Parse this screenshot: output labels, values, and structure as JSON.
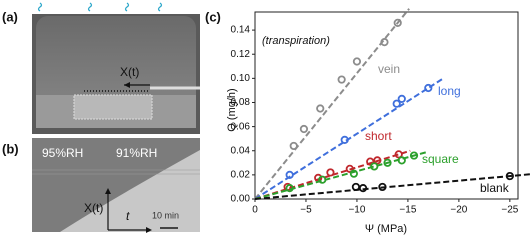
{
  "panels": {
    "a": {
      "label": "(a)",
      "arrow_label": "X(t)"
    },
    "b": {
      "label": "(b)",
      "left_text": "95%RH",
      "right_text": "91%RH",
      "y_label": "X(t)",
      "x_label": "t",
      "scale_label": "10 min"
    }
  },
  "chart_data": {
    "type": "scatter",
    "panel_label": "(c)",
    "annotation": "(transpiration)",
    "x_label": "Ψ (MPa)",
    "y_label": "Q (mg/h)",
    "xlim": [
      0,
      -25.8
    ],
    "ylim": [
      0,
      0.155
    ],
    "xticks": [
      0,
      {
        "value": -5,
        "label": "−5"
      },
      {
        "value": -10,
        "label": "−10"
      },
      {
        "value": -15,
        "label": "−15"
      },
      {
        "value": -20,
        "label": "−20"
      },
      {
        "value": -25,
        "label": "−25"
      }
    ],
    "yticks": [
      {
        "value": 0,
        "label": "0.00"
      },
      {
        "value": 0.02,
        "label": "0.02"
      },
      {
        "value": 0.04,
        "label": "0.04"
      },
      {
        "value": 0.06,
        "label": "0.06"
      },
      {
        "value": 0.08,
        "label": "0.08"
      },
      {
        "value": 0.1,
        "label": "0.10"
      },
      {
        "value": 0.12,
        "label": "0.12"
      },
      {
        "value": 0.14,
        "label": "0.14"
      }
    ],
    "series": [
      {
        "name": "vein",
        "color": "#8c8c8c",
        "x": [
          -3.8,
          -4.8,
          -6.4,
          -8.5,
          -10,
          -12.7,
          -14
        ],
        "values": [
          0.044,
          0.058,
          0.075,
          0.099,
          0.114,
          0.13,
          0.146
        ]
      },
      {
        "name": "long",
        "color": "#3f6fdc",
        "x": [
          -3.4,
          -8.8,
          -13.9,
          -14.4,
          -17
        ],
        "values": [
          0.02,
          0.049,
          0.079,
          0.083,
          0.092
        ]
      },
      {
        "name": "short",
        "color": "#c0282d",
        "x": [
          -3.2,
          -6.2,
          -7.4,
          -9.3,
          -11.3,
          -12,
          -14.1
        ],
        "values": [
          0.01,
          0.0175,
          0.022,
          0.025,
          0.031,
          0.032,
          0.037
        ]
      },
      {
        "name": "square",
        "color": "#2ca02c",
        "x": [
          -3.4,
          -6.6,
          -9.7,
          -11.7,
          -13,
          -14.4,
          -15.6
        ],
        "values": [
          0.009,
          0.016,
          0.021,
          0.027,
          0.03,
          0.032,
          0.036
        ]
      },
      {
        "name": "blank",
        "color": "#111111",
        "x": [
          -9.9,
          -10.6,
          -12.5,
          -25
        ],
        "values": [
          0.01,
          0.009,
          0.01,
          0.019
        ]
      }
    ]
  }
}
